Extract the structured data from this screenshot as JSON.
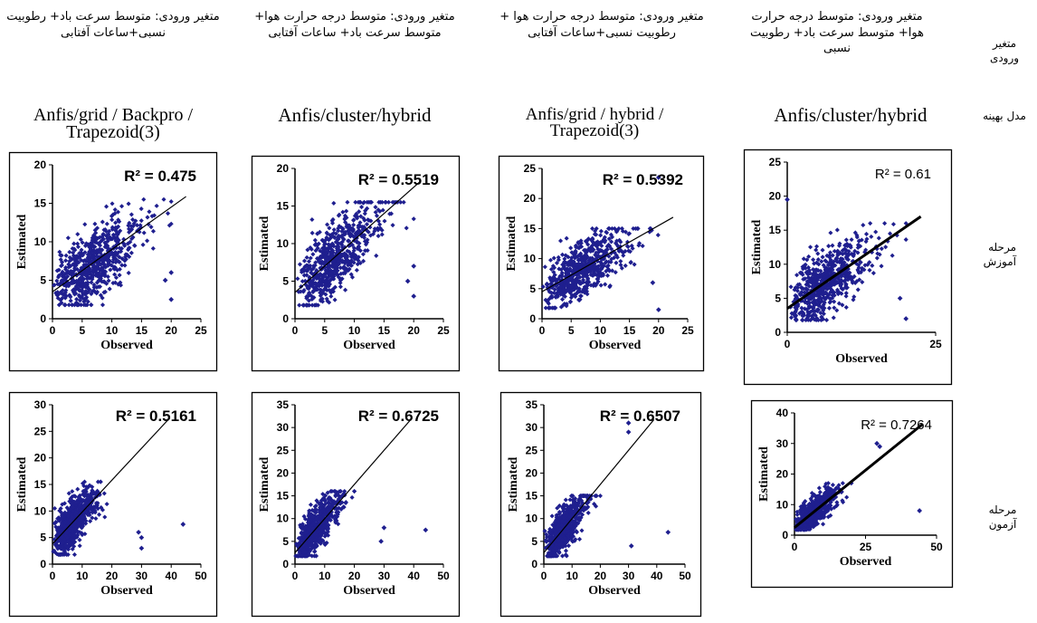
{
  "row_labels": [
    "متغیر ورودی",
    "مدل بهینه",
    "مرحله آموزش",
    "مرحله آزمون"
  ],
  "columns": [
    {
      "input": "متغیر ورودی: متوسط درجه حرارت هوا+ متوسط سرعت باد+ رطوبیت نسبی",
      "model": "Anfis/cluster/hybrid"
    },
    {
      "input": "متغیر ورودی: متوسط درجه حرارت هوا + رطوبیت نسبی+ساعات آفتابی",
      "model": "Anfis/grid / hybrid / Trapezoid(3)"
    },
    {
      "input": "متغیر ورودی: متوسط درجه حرارت هوا+ متوسط سرعت باد+ ساعات آفتابی",
      "model": "Anfis/cluster/hybrid"
    },
    {
      "input": "متغیر ورودی: متوسط سرعت باد+ رطوبیت نسبی+ساعات آفتابی",
      "model": "Anfis/grid / Backpro / Trapezoid(3)"
    }
  ],
  "colors": {
    "points": "#1f1f8f",
    "line": "#000000"
  },
  "chart_data": [
    {
      "type": "scatter",
      "stage": "train",
      "col": 0,
      "r2_label": "R² = 0.61",
      "r2": 0.61,
      "xlabel": "Observed",
      "ylabel": "Estimated",
      "xlim": [
        0,
        25
      ],
      "ylim": [
        0,
        25
      ],
      "xticks": [
        0,
        25
      ],
      "yticks": [
        0,
        5,
        10,
        15,
        20,
        25
      ],
      "fit": {
        "slope": 0.6,
        "intercept": 3.5
      },
      "cap": 16,
      "outliers": [
        [
          0,
          19.5
        ],
        [
          20,
          2
        ],
        [
          19,
          5
        ]
      ],
      "seed": 11
    },
    {
      "type": "scatter",
      "stage": "train",
      "col": 1,
      "r2_label": "R² = 0.5392",
      "r2": 0.5392,
      "xlabel": "Observed",
      "ylabel": "Estimated",
      "xlim": [
        0,
        25
      ],
      "ylim": [
        0,
        25
      ],
      "xticks": [
        0,
        5,
        10,
        15,
        20,
        25
      ],
      "yticks": [
        0,
        5,
        10,
        15,
        20,
        25
      ],
      "fit": {
        "slope": 0.55,
        "intercept": 4.5
      },
      "cap": 15,
      "outliers": [
        [
          20,
          23.5
        ],
        [
          20,
          1.5
        ],
        [
          19,
          6
        ]
      ],
      "seed": 12
    },
    {
      "type": "scatter",
      "stage": "train",
      "col": 2,
      "r2_label": "R² = 0.5519",
      "r2": 0.5519,
      "xlabel": "Observed",
      "ylabel": "Estimated",
      "xlim": [
        0,
        25
      ],
      "ylim": [
        0,
        20
      ],
      "xticks": [
        0,
        5,
        10,
        15,
        20,
        25
      ],
      "yticks": [
        0,
        5,
        10,
        15,
        20
      ],
      "fit": {
        "slope": 0.7,
        "intercept": 3.5
      },
      "cap": 15.5,
      "outliers": [
        [
          20,
          3
        ],
        [
          20,
          7
        ],
        [
          19,
          5
        ]
      ],
      "seed": 13
    },
    {
      "type": "scatter",
      "stage": "train",
      "col": 3,
      "r2_label": "R² = 0.475",
      "r2": 0.475,
      "xlabel": "Observed",
      "ylabel": "Estimated",
      "xlim": [
        0,
        25
      ],
      "ylim": [
        0,
        20
      ],
      "xticks": [
        0,
        5,
        10,
        15,
        20,
        25
      ],
      "yticks": [
        0,
        5,
        10,
        15,
        20
      ],
      "fit": {
        "slope": 0.55,
        "intercept": 3.5
      },
      "cap": 15.5,
      "outliers": [
        [
          20,
          2.5
        ],
        [
          20,
          6
        ],
        [
          19,
          5
        ]
      ],
      "seed": 14
    },
    {
      "type": "scatter",
      "stage": "test",
      "col": 0,
      "r2_label": "R² = 0.7264",
      "r2": 0.7264,
      "xlabel": "Observed",
      "ylabel": "Estimated",
      "xlim": [
        0,
        50
      ],
      "ylim": [
        0,
        40
      ],
      "xticks": [
        0,
        25,
        50
      ],
      "yticks": [
        0,
        10,
        20,
        30,
        40
      ],
      "fit": {
        "slope": 0.75,
        "intercept": 2.5
      },
      "cap": 17,
      "outliers": [
        [
          30,
          29
        ],
        [
          29,
          30
        ],
        [
          44,
          8
        ]
      ],
      "seed": 21
    },
    {
      "type": "scatter",
      "stage": "test",
      "col": 1,
      "r2_label": "R² = 0.6507",
      "r2": 0.6507,
      "xlabel": "Observed",
      "ylabel": "Estimated",
      "xlim": [
        0,
        50
      ],
      "ylim": [
        0,
        35
      ],
      "xticks": [
        0,
        10,
        20,
        30,
        40,
        50
      ],
      "yticks": [
        0,
        5,
        10,
        15,
        20,
        25,
        30,
        35
      ],
      "fit": {
        "slope": 0.75,
        "intercept": 2.5
      },
      "cap": 15,
      "outliers": [
        [
          30,
          31
        ],
        [
          30,
          29
        ],
        [
          44,
          7
        ],
        [
          31,
          4
        ]
      ],
      "seed": 22
    },
    {
      "type": "scatter",
      "stage": "test",
      "col": 2,
      "r2_label": "R² = 0.6725",
      "r2": 0.6725,
      "xlabel": "Observed",
      "ylabel": "Estimated",
      "xlim": [
        0,
        50
      ],
      "ylim": [
        0,
        35
      ],
      "xticks": [
        0,
        10,
        20,
        30,
        40,
        50
      ],
      "yticks": [
        0,
        5,
        10,
        15,
        20,
        25,
        30,
        35
      ],
      "fit": {
        "slope": 0.75,
        "intercept": 2.5
      },
      "cap": 16,
      "outliers": [
        [
          44,
          7.5
        ],
        [
          29,
          5
        ],
        [
          30,
          8
        ]
      ],
      "seed": 23
    },
    {
      "type": "scatter",
      "stage": "test",
      "col": 3,
      "r2_label": "R² = 0.5161",
      "r2": 0.5161,
      "xlabel": "Observed",
      "ylabel": "Estimated",
      "xlim": [
        0,
        50
      ],
      "ylim": [
        0,
        30
      ],
      "xticks": [
        0,
        10,
        20,
        30,
        40,
        50
      ],
      "yticks": [
        0,
        5,
        10,
        15,
        20,
        25,
        30
      ],
      "fit": {
        "slope": 0.6,
        "intercept": 3.8
      },
      "cap": 15.5,
      "outliers": [
        [
          44,
          7.5
        ],
        [
          30,
          5
        ],
        [
          30,
          3
        ],
        [
          29,
          6
        ]
      ],
      "seed": 24
    }
  ]
}
